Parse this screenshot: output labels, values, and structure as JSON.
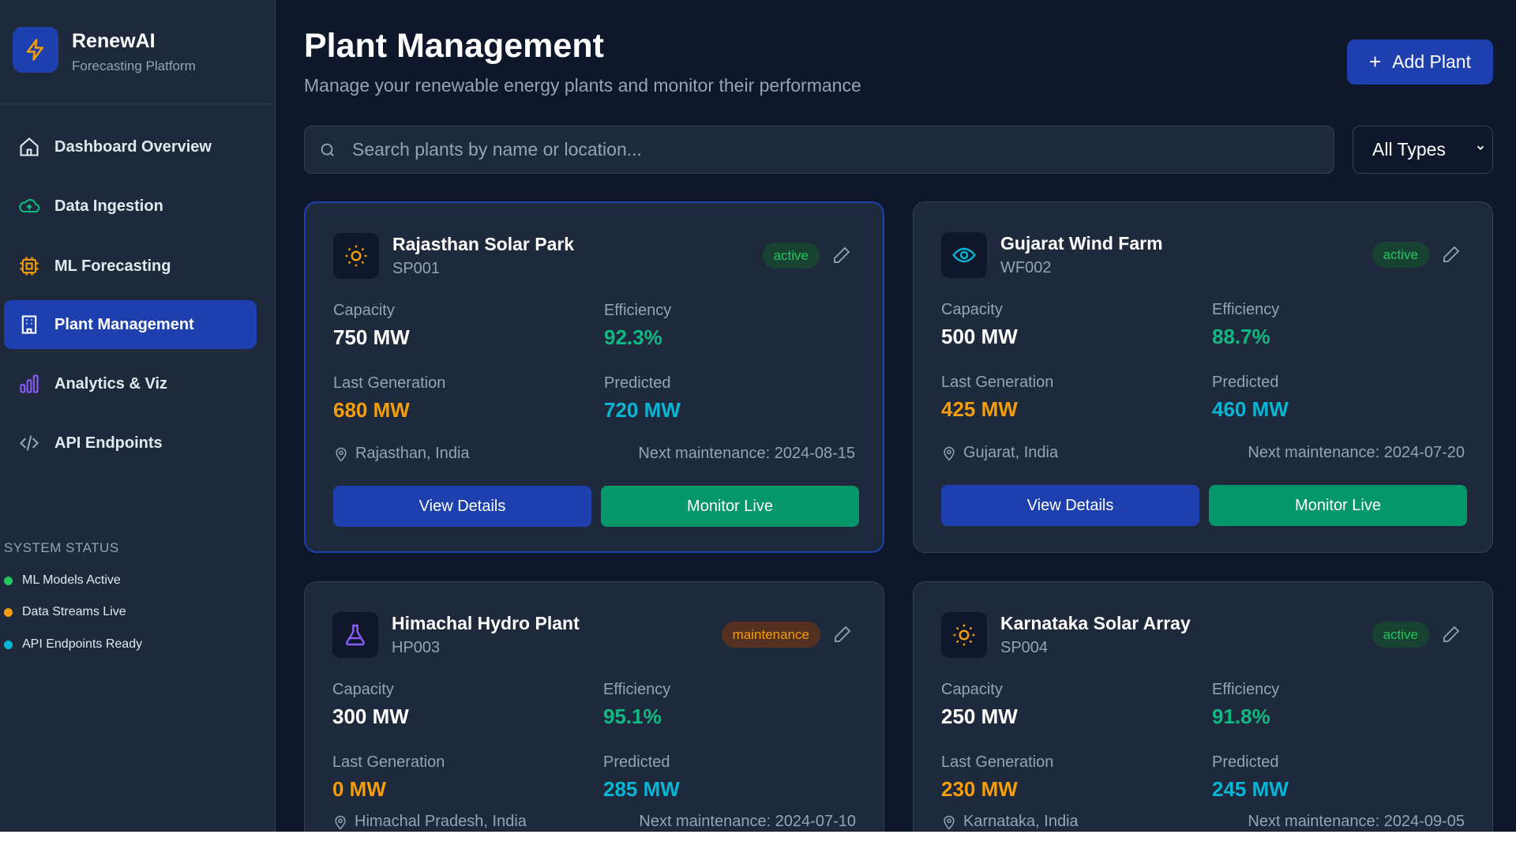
{
  "brand": {
    "name": "RenewAI",
    "subtitle": "Forecasting Platform",
    "icon": "lightning-icon"
  },
  "nav": [
    {
      "label": "Dashboard Overview",
      "icon": "home-icon",
      "color": "#e2e8f0"
    },
    {
      "label": "Data Ingestion",
      "icon": "cloud-upload-icon",
      "color": "#10b981"
    },
    {
      "label": "ML Forecasting",
      "icon": "cpu-icon",
      "color": "#f59e0b"
    },
    {
      "label": "Plant Management",
      "icon": "building-icon",
      "color": "#ffffff",
      "active": true
    },
    {
      "label": "Analytics & Viz",
      "icon": "bar-chart-icon",
      "color": "#8b5cf6"
    },
    {
      "label": "API Endpoints",
      "icon": "code-icon",
      "color": "#94a3b8"
    }
  ],
  "system_status": {
    "heading": "SYSTEM STATUS",
    "items": [
      {
        "label": "ML Models Active",
        "color": "#22c55e"
      },
      {
        "label": "Data Streams Live",
        "color": "#f59e0b"
      },
      {
        "label": "API Endpoints Ready",
        "color": "#06b6d4"
      }
    ]
  },
  "header": {
    "title": "Plant Management",
    "subtitle": "Manage your renewable energy plants and monitor their performance",
    "add_label": "Add Plant"
  },
  "search": {
    "placeholder": "Search plants by name or location...",
    "value": ""
  },
  "filter": {
    "selected": "All Types"
  },
  "labels": {
    "capacity": "Capacity",
    "efficiency": "Efficiency",
    "last_generation": "Last Generation",
    "predicted": "Predicted",
    "view": "View Details",
    "monitor": "Monitor Live"
  },
  "plants": [
    {
      "name": "Rajasthan Solar Park",
      "id": "SP001",
      "type_icon": "sun-icon",
      "status": "active",
      "capacity": "750 MW",
      "efficiency": "92.3%",
      "last_generation": "680 MW",
      "predicted": "720 MW",
      "location": "Rajasthan, India",
      "maintenance": "Next maintenance: 2024-08-15",
      "selected": true
    },
    {
      "name": "Gujarat Wind Farm",
      "id": "WF002",
      "type_icon": "wind-icon",
      "status": "active",
      "capacity": "500 MW",
      "efficiency": "88.7%",
      "last_generation": "425 MW",
      "predicted": "460 MW",
      "location": "Gujarat, India",
      "maintenance": "Next maintenance: 2024-07-20"
    },
    {
      "name": "Himachal Hydro Plant",
      "id": "HP003",
      "type_icon": "flask-icon",
      "status": "maintenance",
      "capacity": "300 MW",
      "efficiency": "95.1%",
      "last_generation": "0 MW",
      "predicted": "285 MW",
      "location": "Himachal Pradesh, India",
      "maintenance": "Next maintenance: 2024-07-10"
    },
    {
      "name": "Karnataka Solar Array",
      "id": "SP004",
      "type_icon": "sun-icon",
      "status": "active",
      "capacity": "250 MW",
      "efficiency": "91.8%",
      "last_generation": "230 MW",
      "predicted": "245 MW",
      "location": "Karnataka, India",
      "maintenance": "Next maintenance: 2024-09-05"
    }
  ],
  "colors": {
    "accent": "#1e40af",
    "success": "#059669",
    "efficiency": "#10b981",
    "generation": "#f59e0b",
    "predicted": "#06b6d4"
  }
}
